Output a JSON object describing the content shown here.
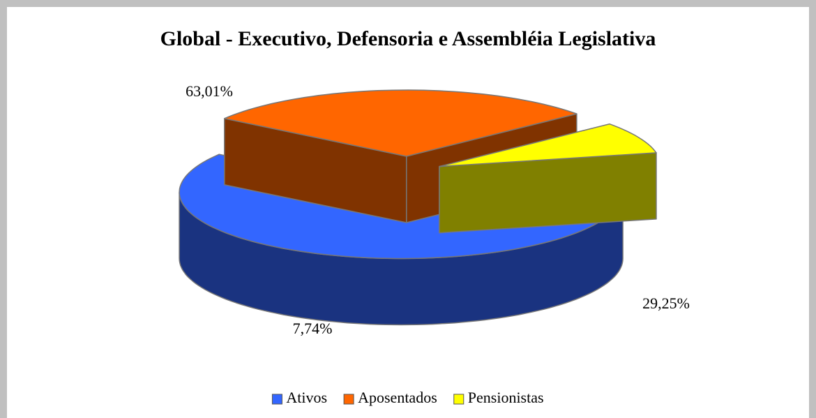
{
  "chart_data": {
    "type": "pie",
    "title": "Global - Executivo, Defensoria e Assembléia Legislativa",
    "categories": [
      "Ativos",
      "Aposentados",
      "Pensionistas"
    ],
    "values": [
      63.01,
      29.25,
      7.74
    ],
    "value_labels": [
      "63,01%",
      "29,25%",
      "7,74%"
    ],
    "colors": [
      "#3366ff",
      "#ff6600",
      "#ffff00"
    ],
    "legend": "bottom"
  }
}
